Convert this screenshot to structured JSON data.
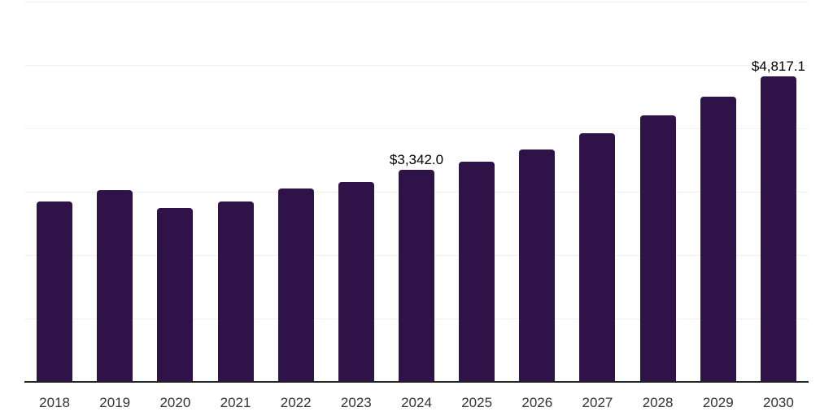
{
  "chart_data": {
    "type": "bar",
    "title": "",
    "xlabel": "",
    "ylabel": "",
    "categories": [
      "2018",
      "2019",
      "2020",
      "2021",
      "2022",
      "2023",
      "2024",
      "2025",
      "2026",
      "2027",
      "2028",
      "2029",
      "2030"
    ],
    "values": [
      2840,
      3030,
      2740,
      2850,
      3045,
      3160,
      3342.0,
      3480,
      3670,
      3925,
      4210,
      4500,
      4817.1
    ],
    "bar_labels": [
      "",
      "",
      "",
      "",
      "",
      "",
      "$3,342.0",
      "",
      "",
      "",
      "",
      "",
      "$4,817.1"
    ],
    "ylim": [
      0,
      6000
    ],
    "gridline_interval": 1000,
    "grid": "horizontal",
    "y_axis_labels_visible": false,
    "legend": "none",
    "colors": {
      "bar": "#2F1247",
      "axis": "#222222",
      "gridline": "#F0F0F0",
      "data_label": "#000000",
      "tick_label": "#333333",
      "background": "#FFFFFF"
    }
  }
}
